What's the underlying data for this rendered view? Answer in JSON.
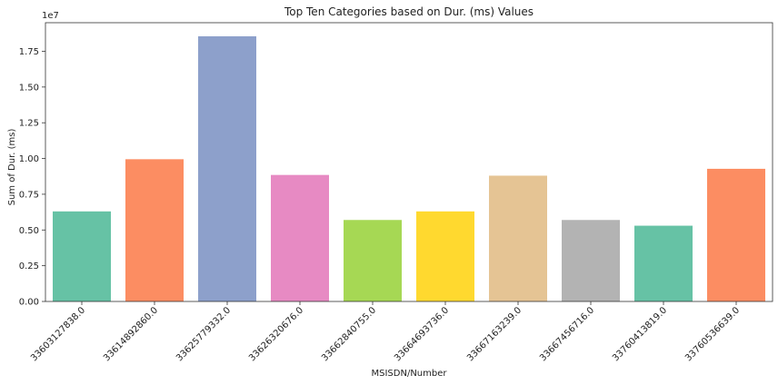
{
  "chart_data": {
    "type": "bar",
    "title": "Top Ten Categories based on Dur. (ms) Values",
    "xlabel": "MSISDN/Number",
    "ylabel": "Sum of Dur. (ms)",
    "y_offset_label": "1e7",
    "ylim": [
      0,
      19500000
    ],
    "y_ticks": [
      0,
      2500000,
      5000000,
      7500000,
      10000000,
      12500000,
      15000000,
      17500000
    ],
    "y_tick_labels": [
      "0.00",
      "0.25",
      "0.50",
      "0.75",
      "1.00",
      "1.25",
      "1.50",
      "1.75"
    ],
    "categories": [
      "33603127838.0",
      "33614892860.0",
      "33625779332.0",
      "33626320676.0",
      "33662840755.0",
      "33664693736.0",
      "33667163239.0",
      "33667456716.0",
      "33760413819.0",
      "33760536639.0"
    ],
    "values": [
      6300000,
      9950000,
      18550000,
      8850000,
      5700000,
      6300000,
      8800000,
      5700000,
      5300000,
      9280000
    ],
    "colors": [
      "#66c2a5",
      "#fc8d62",
      "#8da0cb",
      "#e78ac3",
      "#a6d854",
      "#ffd92f",
      "#e5c494",
      "#b3b3b3",
      "#66c2a5",
      "#fc8d62"
    ],
    "grid": false,
    "legend": "none"
  }
}
